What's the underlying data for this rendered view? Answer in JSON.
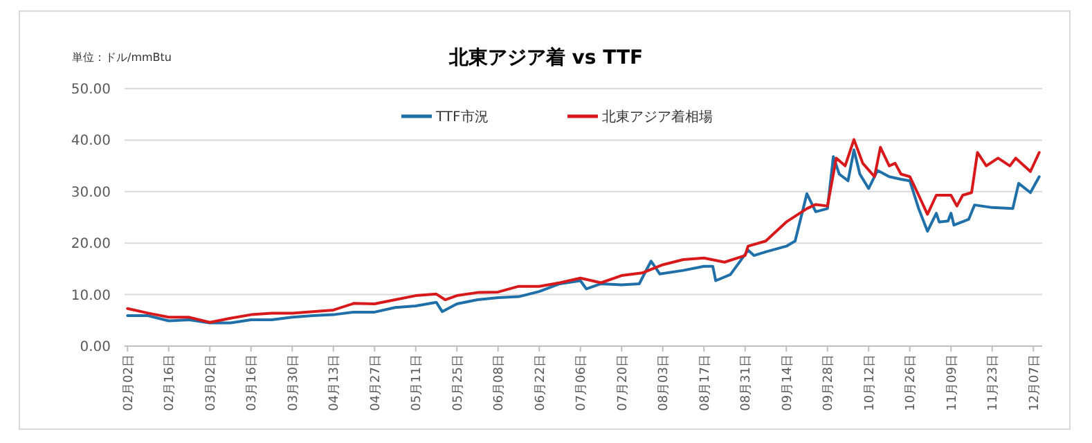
{
  "chart_data": {
    "type": "line",
    "title": "北東アジア着 vs TTF",
    "annotations": [
      "単位：ドル/mmBtu"
    ],
    "legend": "top",
    "grid": "y",
    "line_style": "solid",
    "marker": "none",
    "xlim": [
      "--02-01",
      "--12-10"
    ],
    "xticks": [
      {
        "value": "--02-02",
        "label": "02月02日"
      },
      {
        "value": "--02-16",
        "label": "02月16日"
      },
      {
        "value": "--03-02",
        "label": "03月02日"
      },
      {
        "value": "--03-16",
        "label": "03月16日"
      },
      {
        "value": "--03-30",
        "label": "03月30日"
      },
      {
        "value": "--04-13",
        "label": "04月13日"
      },
      {
        "value": "--04-27",
        "label": "04月27日"
      },
      {
        "value": "--05-11",
        "label": "05月11日"
      },
      {
        "value": "--05-25",
        "label": "05月25日"
      },
      {
        "value": "--06-08",
        "label": "06月08日"
      },
      {
        "value": "--06-22",
        "label": "06月22日"
      },
      {
        "value": "--07-06",
        "label": "07月06日"
      },
      {
        "value": "--07-20",
        "label": "07月20日"
      },
      {
        "value": "--08-03",
        "label": "08月03日"
      },
      {
        "value": "--08-17",
        "label": "08月17日"
      },
      {
        "value": "--08-31",
        "label": "08月31日"
      },
      {
        "value": "--09-14",
        "label": "09月14日"
      },
      {
        "value": "--09-28",
        "label": "09月28日"
      },
      {
        "value": "--10-12",
        "label": "10月12日"
      },
      {
        "value": "--10-26",
        "label": "10月26日"
      },
      {
        "value": "--11-09",
        "label": "11月09日"
      },
      {
        "value": "--11-23",
        "label": "11月23日"
      },
      {
        "value": "--12-07",
        "label": "12月07日"
      }
    ],
    "ylim": [
      0,
      50
    ],
    "yticks": [
      {
        "value": 0,
        "label": "0.00"
      },
      {
        "value": 10,
        "label": "10.00"
      },
      {
        "value": 20,
        "label": "20.00"
      },
      {
        "value": 30,
        "label": "30.00"
      },
      {
        "value": 40,
        "label": "40.00"
      },
      {
        "value": 50,
        "label": "50.00"
      }
    ],
    "series": [
      {
        "name": "TTF市況",
        "color": "#1f6fa8",
        "x": [
          "--02-02",
          "--02-09",
          "--02-16",
          "--02-23",
          "--03-02",
          "--03-09",
          "--03-16",
          "--03-23",
          "--03-30",
          "--04-06",
          "--04-13",
          "--04-20",
          "--04-27",
          "--05-04",
          "--05-11",
          "--05-18",
          "--05-20",
          "--05-25",
          "--06-01",
          "--06-08",
          "--06-15",
          "--06-22",
          "--06-29",
          "--07-06",
          "--07-08",
          "--07-13",
          "--07-20",
          "--07-26",
          "--07-30",
          "--08-02",
          "--08-10",
          "--08-17",
          "--08-20",
          "--08-21",
          "--08-26",
          "--09-01",
          "--09-03",
          "--09-07",
          "--09-14",
          "--09-17",
          "--09-21",
          "--09-24",
          "--09-28",
          "--09-30",
          "--10-02",
          "--10-05",
          "--10-07",
          "--10-09",
          "--10-12",
          "--10-15",
          "--10-19",
          "--10-23",
          "--10-26",
          "--10-29",
          "--11-01",
          "--11-04",
          "--11-05",
          "--11-08",
          "--11-09",
          "--11-10",
          "--11-15",
          "--11-17",
          "--11-23",
          "--11-30",
          "--12-02",
          "--12-06",
          "--12-09"
        ],
        "values": [
          5.9,
          5.9,
          4.9,
          5.1,
          4.5,
          4.5,
          5.1,
          5.1,
          5.6,
          5.9,
          6.1,
          6.6,
          6.6,
          7.5,
          7.8,
          8.5,
          6.7,
          8.2,
          9.0,
          9.4,
          9.6,
          10.6,
          12.1,
          12.7,
          11.1,
          12.1,
          11.9,
          12.1,
          16.5,
          14.0,
          14.7,
          15.5,
          15.5,
          12.7,
          13.9,
          18.6,
          17.6,
          18.3,
          19.4,
          20.4,
          29.6,
          26.1,
          26.7,
          36.8,
          33.4,
          32.1,
          38.1,
          33.4,
          30.6,
          34.1,
          32.9,
          32.4,
          32.1,
          26.7,
          22.3,
          25.8,
          24.1,
          24.3,
          25.8,
          23.5,
          24.6,
          27.4,
          26.9,
          26.7,
          31.6,
          29.8,
          32.9
        ]
      },
      {
        "name": "北東アジア着相場",
        "color": "#d7191c",
        "x": [
          "--02-02",
          "--02-09",
          "--02-16",
          "--02-23",
          "--03-02",
          "--03-09",
          "--03-16",
          "--03-23",
          "--03-30",
          "--04-06",
          "--04-13",
          "--04-20",
          "--04-27",
          "--05-04",
          "--05-11",
          "--05-18",
          "--05-21",
          "--05-25",
          "--06-01",
          "--06-08",
          "--06-15",
          "--06-22",
          "--06-29",
          "--07-06",
          "--07-13",
          "--07-20",
          "--07-27",
          "--08-03",
          "--08-10",
          "--08-17",
          "--08-24",
          "--08-31",
          "--09-01",
          "--09-07",
          "--09-14",
          "--09-21",
          "--09-24",
          "--09-28",
          "--10-01",
          "--10-04",
          "--10-07",
          "--10-10",
          "--10-14",
          "--10-16",
          "--10-19",
          "--10-21",
          "--10-23",
          "--10-26",
          "--10-29",
          "--11-01",
          "--11-04",
          "--11-09",
          "--11-11",
          "--11-13",
          "--11-16",
          "--11-18",
          "--11-21",
          "--11-25",
          "--11-29",
          "--12-01",
          "--12-06",
          "--12-09"
        ],
        "values": [
          7.3,
          6.4,
          5.6,
          5.6,
          4.6,
          5.4,
          6.1,
          6.4,
          6.4,
          6.7,
          7.0,
          8.3,
          8.2,
          9.0,
          9.8,
          10.1,
          9.0,
          9.8,
          10.4,
          10.5,
          11.6,
          11.6,
          12.3,
          13.2,
          12.3,
          13.7,
          14.2,
          15.8,
          16.8,
          17.1,
          16.3,
          17.6,
          19.4,
          20.4,
          24.1,
          26.7,
          27.5,
          27.2,
          36.5,
          35.0,
          40.1,
          35.5,
          32.9,
          38.6,
          35.0,
          35.5,
          33.4,
          32.9,
          29.3,
          25.6,
          29.3,
          29.3,
          27.2,
          29.3,
          29.8,
          37.6,
          35.0,
          36.5,
          35.0,
          36.5,
          33.9,
          37.6
        ]
      }
    ]
  }
}
